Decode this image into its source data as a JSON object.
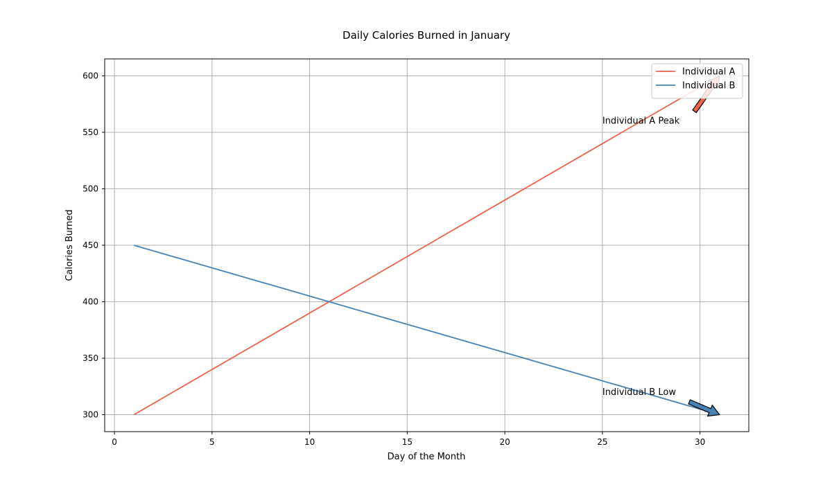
{
  "chart_data": {
    "type": "line",
    "title": "Daily Calories Burned in January",
    "xlabel": "Day of the Month",
    "ylabel": "Calories Burned",
    "xlim": [
      -0.5,
      32.5
    ],
    "ylim": [
      285,
      615
    ],
    "xticks": [
      0,
      5,
      10,
      15,
      20,
      25,
      30
    ],
    "yticks": [
      300,
      350,
      400,
      450,
      500,
      550,
      600
    ],
    "grid": true,
    "legend_position": "upper right",
    "series": [
      {
        "name": "Individual A",
        "color": "#f0624a",
        "x": [
          1,
          31
        ],
        "y": [
          300,
          600
        ]
      },
      {
        "name": "Individual B",
        "color": "#4682b4",
        "x": [
          1,
          31
        ],
        "y": [
          450,
          300
        ]
      }
    ],
    "annotations": [
      {
        "text": "Individual A Peak",
        "text_x": 25,
        "text_y": 560,
        "point_x": 31,
        "point_y": 600,
        "arrow_color": "#f0624a"
      },
      {
        "text": "Individual B Low",
        "text_x": 25,
        "text_y": 320,
        "point_x": 31,
        "point_y": 300,
        "arrow_color": "#4682b4"
      }
    ]
  }
}
